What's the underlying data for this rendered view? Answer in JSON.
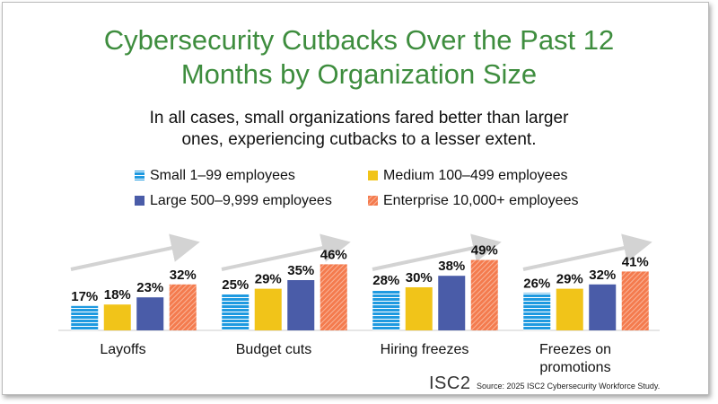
{
  "chart_data": {
    "type": "bar",
    "title": "Cybersecurity Cutbacks Over the Past 12 Months by Organization Size",
    "subtitle": "In all cases, small organizations fared better than larger ones, experiencing cutbacks to a lesser extent.",
    "categories": [
      "Layoffs",
      "Budget cuts",
      "Hiring freezes",
      "Freezes on promotions"
    ],
    "series": [
      {
        "name": "Small 1–99 employees",
        "color": "#1f9ae0",
        "pattern": "horizontal-stripes",
        "values": [
          17,
          25,
          28,
          26
        ],
        "value_labels": [
          "17%",
          "25%",
          "28%",
          "26%"
        ]
      },
      {
        "name": "Medium 100–499 employees",
        "color": "#f1c419",
        "pattern": "solid",
        "values": [
          18,
          29,
          30,
          29
        ],
        "value_labels": [
          "18%",
          "29%",
          "30%",
          "29%"
        ]
      },
      {
        "name": "Large 500–9,999 employees",
        "color": "#4a5ca8",
        "pattern": "solid",
        "values": [
          23,
          35,
          38,
          32
        ],
        "value_labels": [
          "23%",
          "35%",
          "38%",
          "32%"
        ]
      },
      {
        "name": "Enterprise 10,000+ employees",
        "color": "#f47b4e",
        "pattern": "diagonal-hatch",
        "values": [
          32,
          46,
          49,
          41
        ],
        "value_labels": [
          "32%",
          "46%",
          "49%",
          "41%"
        ]
      }
    ],
    "ylim": [
      0,
      60
    ],
    "logo": "ISC2",
    "source": "Source: 2025 ISC2 Cybersecurity Workforce Study."
  }
}
